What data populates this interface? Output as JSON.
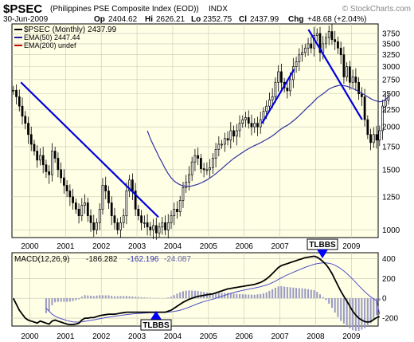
{
  "header": {
    "symbol": "$PSEC",
    "name": "(Philippines PSE Composite Index (EOD))",
    "exchange": "INDX",
    "date": "30-Jun-2009",
    "op_label": "Op",
    "op": "2404.62",
    "hi_label": "Hi",
    "hi": "2626.21",
    "lo_label": "Lo",
    "lo": "2352.75",
    "cl_label": "Cl",
    "cl": "2437.99",
    "chg_label": "Chg",
    "chg": "+48.68 (+2.04%)",
    "watermark": "© StockCharts.com"
  },
  "legend": [
    {
      "text": "$PSEC (Monthly) 2437.99",
      "color": "#000000"
    },
    {
      "text": "EMA(50) 2447.44",
      "color": "#1a1aa6"
    },
    {
      "text": "EMA(200) undef",
      "color": "#cc0000"
    }
  ],
  "colors": {
    "panel_bg": "#ffffe6",
    "grid": "#c8c8b4",
    "ema50": "#3232a0",
    "trendline": "#0000dd",
    "macd": "#000000",
    "signal": "#5050c8",
    "histogram": "#9b9bc3",
    "arrow": "#0000ff"
  },
  "annotations": {
    "tlbbs_top": "TLBBS",
    "tlbbs_bottom": "TLBBS"
  },
  "chart_data": [
    {
      "type": "candlestick",
      "title": "$PSEC (Monthly)",
      "x_ticks": [
        "2000",
        "2001",
        "2002",
        "2003",
        "2004",
        "2005",
        "2006",
        "2007",
        "2008",
        "2009"
      ],
      "y_ticks": [
        3750,
        3500,
        3250,
        3000,
        2750,
        2500,
        2250,
        2000,
        1750,
        1500,
        1250,
        1000
      ],
      "y_scale": "log",
      "ylim": [
        950,
        4000
      ],
      "close": [
        2560,
        2450,
        2300,
        2150,
        2050,
        1900,
        1780,
        1700,
        1600,
        1650,
        1550,
        1480,
        1450,
        1700,
        1620,
        1500,
        1420,
        1350,
        1300,
        1250,
        1200,
        1150,
        1100,
        1180,
        1200,
        1100,
        1050,
        1000,
        1050,
        1150,
        1350,
        1300,
        1200,
        1100,
        1050,
        1000,
        1050,
        1100,
        1300,
        1400,
        1300,
        1150,
        1100,
        1050,
        1050,
        1020,
        1000,
        1030,
        980,
        1020,
        1050,
        1000,
        1050,
        1100,
        1150,
        1130,
        1220,
        1330,
        1380,
        1450,
        1580,
        1650,
        1620,
        1510,
        1500,
        1500,
        1520,
        1620,
        1720,
        1780,
        1780,
        1850,
        1830,
        1950,
        1880,
        1950,
        2050,
        2100,
        2130,
        2050,
        2000,
        2050,
        2000,
        2100,
        2220,
        2300,
        2400,
        2450,
        2700,
        2900,
        2700,
        2600,
        2550,
        2750,
        3000,
        3100,
        3250,
        3300,
        3400,
        3500,
        3400,
        3700,
        3750,
        3300,
        3500,
        3650,
        3800,
        3600,
        3550,
        3400,
        3250,
        2800,
        3000,
        2700,
        2800,
        2700,
        2500,
        2450,
        2100,
        1900,
        1800,
        1900,
        1830,
        1950,
        2300,
        2390,
        2440
      ],
      "ema50": [
        null,
        null,
        null,
        null,
        null,
        null,
        null,
        null,
        null,
        null,
        null,
        null,
        null,
        null,
        null,
        null,
        null,
        null,
        null,
        null,
        null,
        null,
        null,
        null,
        null,
        null,
        null,
        null,
        null,
        null,
        null,
        null,
        null,
        null,
        null,
        null,
        null,
        null,
        null,
        null,
        null,
        null,
        null,
        null,
        null,
        1950,
        1850,
        1770,
        1700,
        1630,
        1570,
        1510,
        1460,
        1420,
        1390,
        1370,
        1355,
        1345,
        1342,
        1340,
        1345,
        1352,
        1360,
        1372,
        1385,
        1400,
        1418,
        1438,
        1460,
        1485,
        1510,
        1538,
        1565,
        1592,
        1618,
        1640,
        1663,
        1686,
        1708,
        1728,
        1746,
        1764,
        1780,
        1798,
        1818,
        1838,
        1860,
        1884,
        1912,
        1945,
        1975,
        2000,
        2022,
        2050,
        2083,
        2118,
        2160,
        2200,
        2245,
        2290,
        2330,
        2380,
        2430,
        2465,
        2500,
        2540,
        2580,
        2605,
        2625,
        2640,
        2650,
        2640,
        2630,
        2610,
        2590,
        2565,
        2540,
        2510,
        2480,
        2450,
        2420,
        2395,
        2380,
        2370,
        2375,
        2410,
        2447
      ],
      "trendlines": [
        {
          "from": [
            "1999.75",
            2700
          ],
          "to": [
            "2003.6",
            1090
          ]
        },
        {
          "from": [
            "2006.5",
            2050
          ],
          "to": [
            "2007.4",
            2950
          ]
        },
        {
          "from": [
            "2007.8",
            3850
          ],
          "to": [
            "2009.3",
            2100
          ]
        }
      ],
      "series": [
        {
          "name": "$PSEC (Monthly)",
          "last": 2437.99
        },
        {
          "name": "EMA(50)",
          "last": 2447.44
        },
        {
          "name": "EMA(200)",
          "last": null
        }
      ]
    },
    {
      "type": "line",
      "title": "MACD(12,26,9)",
      "values_label": [
        "-186.282",
        "-162.196",
        "-24.087"
      ],
      "x_ticks": [
        "2000",
        "2001",
        "2002",
        "2003",
        "2004",
        "2005",
        "2006",
        "2007",
        "2008",
        "2009"
      ],
      "y_ticks": [
        400,
        200,
        0,
        -200
      ],
      "ylim": [
        -280,
        460
      ],
      "macd": [
        0,
        -60,
        -120,
        -160,
        -200,
        -220,
        -230,
        -240,
        -250,
        -230,
        -240,
        -250,
        -260,
        -230,
        -220,
        -230,
        -240,
        -250,
        -260,
        -265,
        -265,
        -260,
        -250,
        -220,
        -200,
        -200,
        -195,
        -195,
        -185,
        -175,
        -170,
        -165,
        -160,
        -160,
        -160,
        -155,
        -150,
        -145,
        -140,
        -140,
        -140,
        -140,
        -140,
        -140,
        -140,
        -140,
        -140,
        -140,
        -140,
        -140,
        -140,
        -140,
        -130,
        -120,
        -100,
        -80,
        -60,
        -40,
        -25,
        -10,
        0,
        10,
        20,
        25,
        30,
        35,
        40,
        45,
        55,
        65,
        75,
        85,
        95,
        100,
        105,
        110,
        115,
        120,
        125,
        130,
        135,
        140,
        150,
        160,
        175,
        195,
        220,
        250,
        280,
        310,
        330,
        340,
        350,
        360,
        370,
        380,
        390,
        400,
        410,
        415,
        420,
        425,
        415,
        395,
        370,
        340,
        300,
        250,
        190,
        130,
        70,
        20,
        -30,
        -80,
        -130,
        -170,
        -200,
        -220,
        -235,
        -240,
        -235,
        -215,
        -195,
        -186
      ],
      "signal": [
        null,
        null,
        null,
        null,
        null,
        null,
        null,
        null,
        null,
        null,
        null,
        -100,
        -130,
        -160,
        -180,
        -195,
        -205,
        -215,
        -225,
        -232,
        -237,
        -240,
        -240,
        -237,
        -232,
        -228,
        -222,
        -217,
        -212,
        -206,
        -200,
        -195,
        -190,
        -185,
        -180,
        -176,
        -172,
        -168,
        -164,
        -161,
        -158,
        -155,
        -153,
        -151,
        -149,
        -147,
        -146,
        -145,
        -144,
        -143,
        -142,
        -141,
        -139,
        -136,
        -132,
        -127,
        -120,
        -111,
        -101,
        -90,
        -78,
        -66,
        -54,
        -43,
        -33,
        -24,
        -16,
        -9,
        0,
        10,
        20,
        30,
        40,
        50,
        58,
        66,
        73,
        80,
        86,
        92,
        98,
        104,
        110,
        117,
        125,
        134,
        145,
        158,
        173,
        190,
        207,
        222,
        236,
        249,
        262,
        275,
        288,
        300,
        312,
        323,
        333,
        343,
        350,
        355,
        358,
        358,
        354,
        346,
        334,
        318,
        298,
        275,
        250,
        222,
        192,
        160,
        128,
        97,
        67,
        40,
        15,
        -6,
        -25,
        -162
      ]
    }
  ]
}
